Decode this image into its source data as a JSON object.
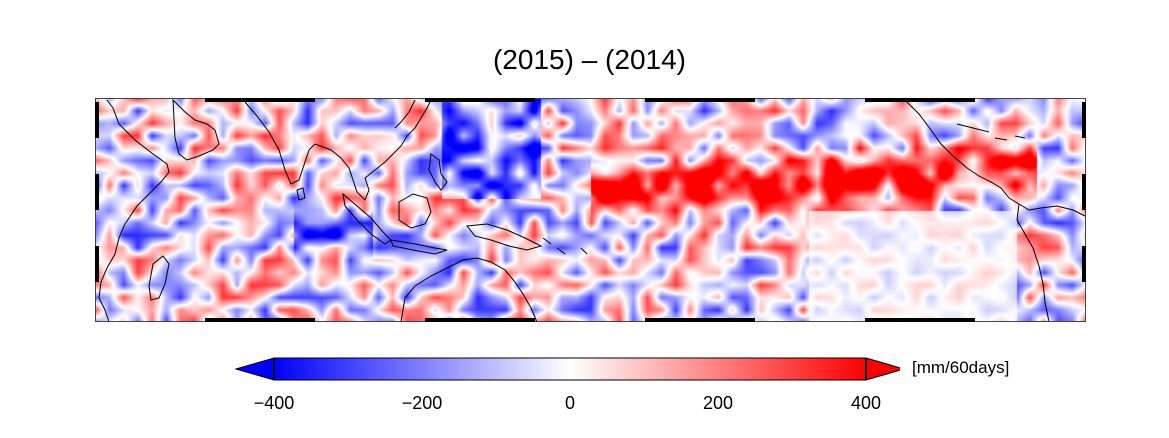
{
  "title": "(2015) – (2014)",
  "colorbar": {
    "units": "[mm/60days]",
    "min": -400,
    "max": 400,
    "ticks": [
      {
        "value": -400,
        "label": "−400"
      },
      {
        "value": -200,
        "label": "−200"
      },
      {
        "value": 0,
        "label": "0"
      },
      {
        "value": 200,
        "label": "200"
      },
      {
        "value": 400,
        "label": "400"
      }
    ],
    "low_color": "#0000ff",
    "mid_color": "#ffffff",
    "high_color": "#ff0000"
  },
  "map": {
    "type": "heatmap",
    "projection": "equirectangular",
    "region": "tropics, Indian Ocean to Atlantic",
    "colors": {
      "coast": "#000000",
      "frame": "#000000"
    }
  }
}
